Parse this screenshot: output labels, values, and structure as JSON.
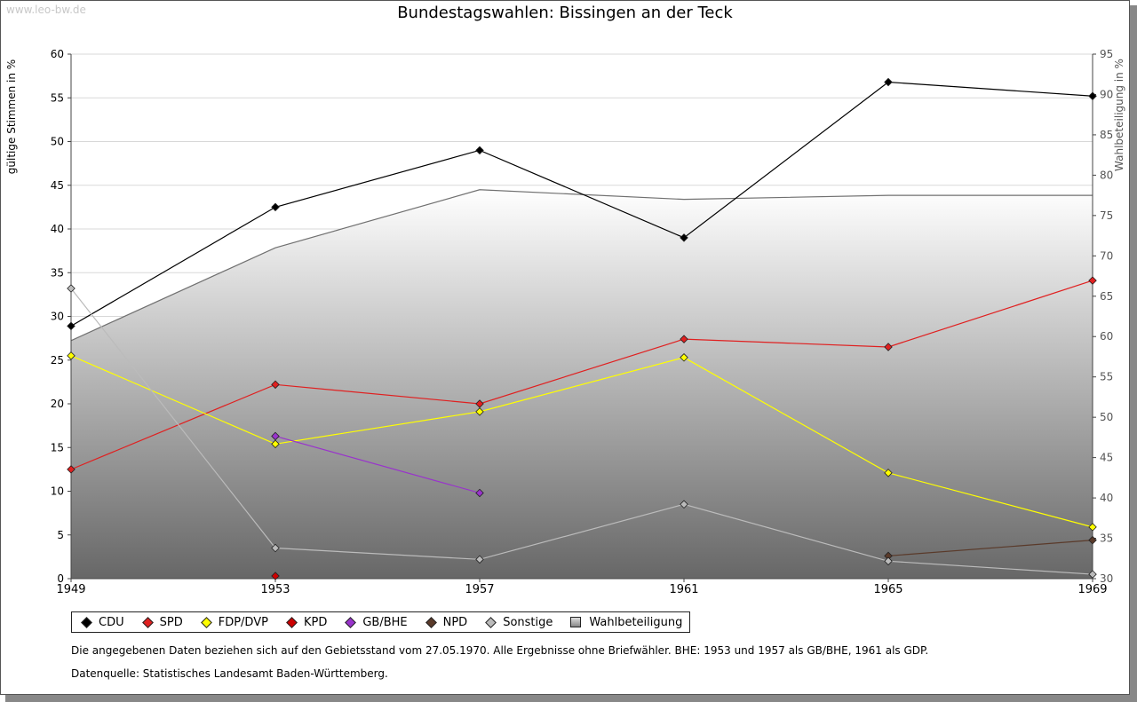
{
  "watermark": "www.leo-bw.de",
  "footnote": "Die angegebenen Daten beziehen sich auf den Gebietsstand vom 27.05.1970. Alle Ergebnisse ohne Briefwähler. BHE: 1953 und 1957 als GB/BHE, 1961 als GDP.",
  "source": "Datenquelle: Statistisches Landesamt Baden-Württemberg.",
  "chart_data": {
    "type": "line",
    "title": "Bundestagswahlen: Bissingen an der Teck",
    "ylabel": "gültige Stimmen in %",
    "y2label": "Wahlbeteiligung in %",
    "categories": [
      "1949",
      "1953",
      "1957",
      "1961",
      "1965",
      "1969"
    ],
    "ylim": [
      0,
      60
    ],
    "yticks": [
      "0",
      "5",
      "10",
      "15",
      "20",
      "25",
      "30",
      "35",
      "40",
      "45",
      "50",
      "55",
      "60"
    ],
    "y2lim": [
      30,
      95
    ],
    "y2ticks": [
      "30",
      "35",
      "40",
      "45",
      "50",
      "55",
      "60",
      "65",
      "70",
      "75",
      "80",
      "85",
      "90",
      "95"
    ],
    "series": [
      {
        "name": "CDU",
        "color": "#000000",
        "values": [
          28.9,
          42.5,
          49.0,
          39.0,
          56.8,
          55.2
        ]
      },
      {
        "name": "SPD",
        "color": "#e02020",
        "values": [
          12.5,
          22.2,
          20.0,
          27.4,
          26.5,
          34.1
        ]
      },
      {
        "name": "FDP/DVP",
        "color": "#ffff00",
        "values": [
          25.5,
          15.4,
          19.1,
          25.3,
          12.1,
          5.9
        ]
      },
      {
        "name": "KPD",
        "color": "#cc0000",
        "values": [
          null,
          0.3,
          null,
          null,
          null,
          null
        ]
      },
      {
        "name": "GB/BHE",
        "color": "#9933cc",
        "values": [
          null,
          16.3,
          9.8,
          null,
          null,
          null
        ]
      },
      {
        "name": "NPD",
        "color": "#5a3a2a",
        "values": [
          null,
          null,
          null,
          null,
          2.6,
          4.4
        ]
      },
      {
        "name": "Sonstige",
        "color": "#bbbbbb",
        "values": [
          33.2,
          3.5,
          2.2,
          8.5,
          2.0,
          0.5
        ]
      }
    ],
    "turnout": {
      "name": "Wahlbeteiligung",
      "values": [
        59.5,
        71.0,
        78.2,
        77.0,
        77.5,
        77.5
      ]
    }
  }
}
